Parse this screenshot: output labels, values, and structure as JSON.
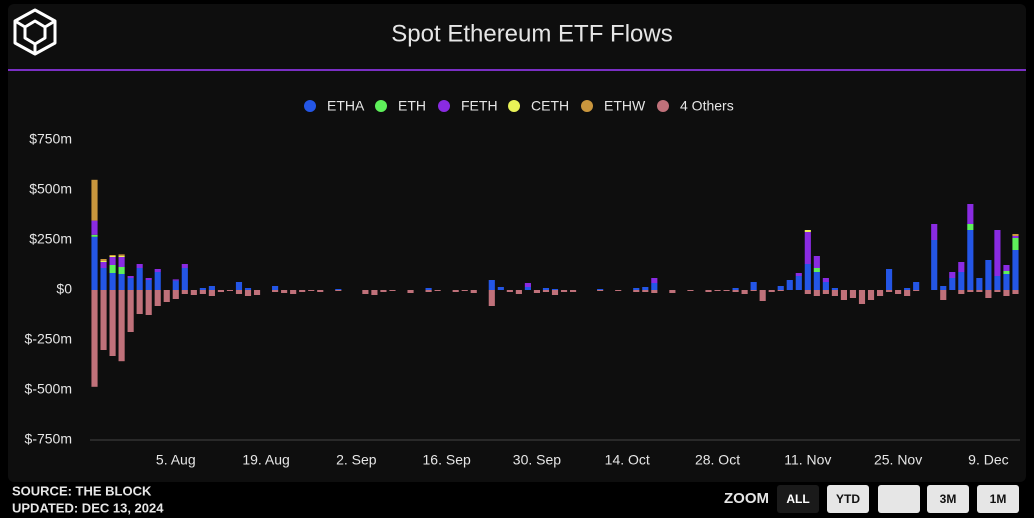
{
  "chart_data": {
    "type": "stacked-bar",
    "title": "Spot Ethereum ETF Flows",
    "categories": [
      null,
      null,
      null,
      null,
      null,
      null,
      null,
      null,
      null,
      "5. Aug",
      null,
      null,
      null,
      null,
      null,
      null,
      null,
      null,
      null,
      "19. Aug",
      null,
      null,
      null,
      null,
      null,
      null,
      null,
      null,
      null,
      "2. Sep",
      null,
      null,
      null,
      null,
      null,
      null,
      null,
      null,
      null,
      "16. Sep",
      null,
      null,
      null,
      null,
      null,
      null,
      null,
      null,
      null,
      "30. Sep",
      null,
      null,
      null,
      null,
      null,
      null,
      null,
      null,
      null,
      "14. Oct",
      null,
      null,
      null,
      null,
      null,
      null,
      null,
      null,
      null,
      "28. Oct",
      null,
      null,
      null,
      null,
      null,
      null,
      null,
      null,
      null,
      "11. Nov",
      null,
      null,
      null,
      null,
      null,
      null,
      null,
      null,
      null,
      "25. Nov",
      null,
      null,
      null,
      null,
      null,
      null,
      null,
      null,
      null,
      "9. Dec",
      null,
      null,
      null
    ],
    "series": [
      {
        "name": "ETHA",
        "color": "#2456e6",
        "values": [
          266,
          110,
          85,
          80,
          60,
          110,
          50,
          90,
          0,
          47,
          110,
          0,
          10,
          20,
          0,
          0,
          40,
          10,
          0,
          0,
          20,
          0,
          0,
          0,
          0,
          0,
          0,
          5,
          0,
          null,
          0,
          0,
          0,
          0,
          0,
          0,
          0,
          10,
          0,
          0,
          0,
          0,
          0,
          0,
          50,
          15,
          0,
          0,
          15,
          0,
          10,
          5,
          0,
          0,
          0,
          0,
          5,
          0,
          0,
          0,
          10,
          15,
          35,
          0,
          0,
          0,
          0,
          0,
          0,
          0,
          0,
          10,
          0,
          40,
          0,
          0,
          20,
          50,
          70,
          130,
          90,
          40,
          10,
          0,
          0,
          0,
          0,
          0,
          105,
          0,
          10,
          40,
          null,
          250,
          20,
          60,
          90,
          300,
          60,
          150,
          70,
          80,
          200
        ]
      },
      {
        "name": "ETH",
        "color": "#5ef05a",
        "values": [
          10,
          0,
          40,
          35,
          0,
          0,
          0,
          0,
          0,
          0,
          0,
          0,
          0,
          0,
          0,
          0,
          0,
          0,
          0,
          0,
          0,
          0,
          0,
          0,
          0,
          0,
          0,
          0,
          0,
          null,
          0,
          0,
          0,
          0,
          0,
          0,
          0,
          0,
          0,
          0,
          0,
          0,
          0,
          0,
          0,
          0,
          0,
          0,
          0,
          0,
          0,
          0,
          0,
          0,
          0,
          0,
          0,
          0,
          0,
          0,
          0,
          0,
          0,
          0,
          0,
          0,
          0,
          0,
          0,
          0,
          0,
          0,
          0,
          0,
          0,
          0,
          0,
          0,
          0,
          0,
          20,
          0,
          0,
          0,
          0,
          0,
          0,
          0,
          0,
          0,
          0,
          0,
          null,
          0,
          0,
          0,
          0,
          30,
          0,
          0,
          0,
          15,
          60
        ]
      },
      {
        "name": "FETH",
        "color": "#8a2be2",
        "values": [
          71,
          30,
          40,
          50,
          10,
          20,
          10,
          15,
          0,
          6,
          20,
          0,
          0,
          0,
          0,
          0,
          0,
          0,
          0,
          0,
          0,
          0,
          0,
          0,
          0,
          0,
          0,
          0,
          0,
          null,
          0,
          0,
          0,
          0,
          0,
          0,
          0,
          0,
          0,
          0,
          0,
          0,
          0,
          0,
          0,
          0,
          0,
          0,
          20,
          0,
          0,
          0,
          0,
          0,
          0,
          0,
          0,
          0,
          0,
          0,
          0,
          0,
          25,
          0,
          0,
          0,
          0,
          0,
          0,
          0,
          0,
          0,
          0,
          0,
          0,
          0,
          0,
          0,
          15,
          160,
          60,
          20,
          0,
          0,
          0,
          0,
          0,
          0,
          0,
          0,
          0,
          0,
          null,
          80,
          0,
          30,
          50,
          100,
          0,
          0,
          230,
          30,
          10
        ]
      },
      {
        "name": "CETH",
        "color": "#e9f257",
        "values": [
          0,
          5,
          5,
          5,
          0,
          0,
          0,
          0,
          0,
          0,
          0,
          0,
          0,
          0,
          0,
          0,
          0,
          0,
          0,
          0,
          0,
          0,
          0,
          0,
          0,
          0,
          0,
          0,
          0,
          null,
          0,
          0,
          0,
          0,
          0,
          0,
          0,
          0,
          0,
          0,
          0,
          0,
          0,
          0,
          0,
          0,
          0,
          0,
          0,
          0,
          0,
          0,
          0,
          0,
          0,
          0,
          0,
          0,
          0,
          0,
          0,
          0,
          0,
          0,
          0,
          0,
          0,
          0,
          0,
          0,
          0,
          0,
          0,
          0,
          0,
          0,
          0,
          0,
          0,
          10,
          0,
          0,
          0,
          0,
          0,
          0,
          0,
          0,
          0,
          0,
          0,
          0,
          null,
          0,
          0,
          0,
          0,
          0,
          0,
          0,
          0,
          0,
          0
        ]
      },
      {
        "name": "ETHW",
        "color": "#c9963d",
        "values": [
          204,
          10,
          5,
          8,
          0,
          0,
          0,
          0,
          0,
          0,
          0,
          0,
          0,
          0,
          0,
          0,
          0,
          0,
          0,
          0,
          0,
          0,
          0,
          0,
          0,
          0,
          0,
          0,
          0,
          null,
          0,
          0,
          0,
          0,
          0,
          0,
          0,
          0,
          0,
          0,
          0,
          0,
          0,
          0,
          0,
          0,
          0,
          0,
          0,
          0,
          0,
          0,
          0,
          0,
          0,
          0,
          0,
          0,
          0,
          0,
          0,
          0,
          0,
          0,
          0,
          0,
          0,
          0,
          0,
          0,
          0,
          0,
          0,
          0,
          0,
          0,
          0,
          0,
          0,
          0,
          0,
          0,
          0,
          0,
          0,
          0,
          0,
          0,
          0,
          0,
          0,
          0,
          null,
          0,
          0,
          0,
          0,
          0,
          0,
          0,
          0,
          0,
          10
        ]
      },
      {
        "name": "4 Others",
        "color": "#c0717a",
        "values": [
          -484,
          -300,
          -330,
          -356,
          -210,
          -120,
          -125,
          -80,
          -60,
          -45,
          -20,
          -25,
          -20,
          -30,
          -10,
          -5,
          -20,
          -30,
          -25,
          0,
          -10,
          -15,
          -20,
          -10,
          -5,
          -10,
          0,
          -5,
          0,
          null,
          -20,
          -25,
          -10,
          -5,
          0,
          -15,
          0,
          -10,
          -5,
          0,
          -10,
          -5,
          -15,
          0,
          -80,
          0,
          -10,
          -20,
          0,
          -15,
          -10,
          -25,
          -10,
          -10,
          0,
          0,
          -5,
          0,
          -5,
          0,
          -10,
          -10,
          -15,
          0,
          -15,
          0,
          -5,
          0,
          -10,
          -5,
          -5,
          -10,
          -20,
          -5,
          -55,
          -10,
          -5,
          0,
          0,
          -20,
          -30,
          -20,
          -30,
          -50,
          -40,
          -70,
          -50,
          -30,
          -10,
          -20,
          -30,
          -5,
          null,
          0,
          -50,
          0,
          -20,
          -10,
          -10,
          -40,
          -10,
          -30,
          -20
        ]
      }
    ],
    "ylim": [
      -750,
      750
    ],
    "yticks": [
      {
        "value": -750,
        "label": "$-750m"
      },
      {
        "value": -500,
        "label": "$-500m"
      },
      {
        "value": -250,
        "label": "$-250m"
      },
      {
        "value": 0,
        "label": "$0"
      },
      {
        "value": 250,
        "label": "$250m"
      },
      {
        "value": 500,
        "label": "$500m"
      },
      {
        "value": 750,
        "label": "$750m"
      }
    ],
    "grid": false,
    "legend": "top"
  },
  "footer": {
    "source": "SOURCE: THE BLOCK",
    "updated": "UPDATED: DEC 13, 2024"
  },
  "zoom": {
    "label": "ZOOM",
    "buttons": [
      "ALL",
      "YTD",
      "3M",
      "1M"
    ]
  }
}
